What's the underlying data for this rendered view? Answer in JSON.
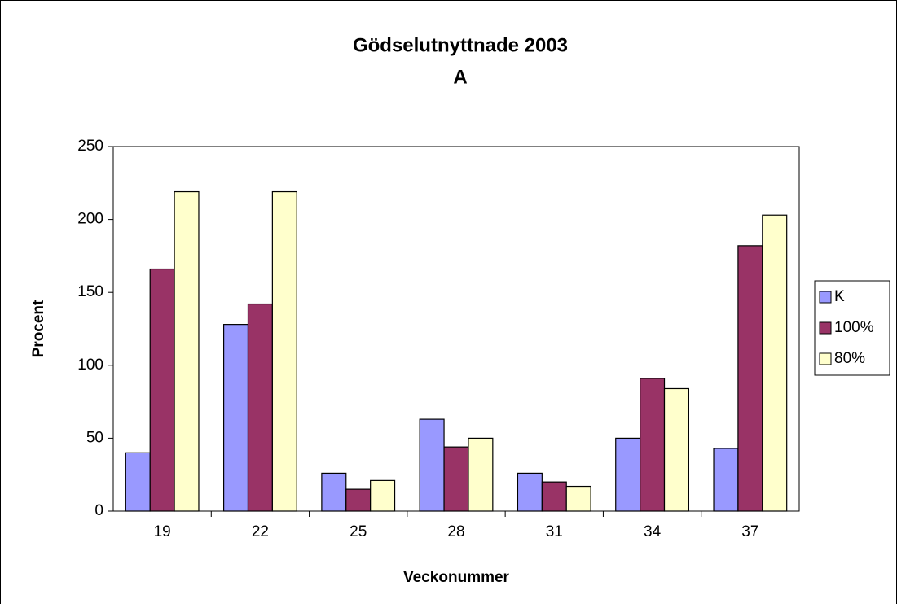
{
  "chart_data": {
    "type": "bar",
    "title": "Gödselutnyttnade 2003",
    "subtitle": "A",
    "x_label": "Veckonummer",
    "y_label": "Procent",
    "categories": [
      "19",
      "22",
      "25",
      "28",
      "31",
      "34",
      "37"
    ],
    "series": [
      {
        "name": "K",
        "color": "#9999ff",
        "values": [
          40,
          128,
          26,
          63,
          26,
          50,
          43
        ]
      },
      {
        "name": "100%",
        "color": "#993366",
        "values": [
          166,
          142,
          15,
          44,
          20,
          91,
          182
        ]
      },
      {
        "name": "80%",
        "color": "#ffffcc",
        "values": [
          219,
          219,
          21,
          50,
          17,
          84,
          203
        ]
      }
    ],
    "ylim": [
      0,
      250
    ],
    "yticks": [
      0,
      50,
      100,
      150,
      200,
      250
    ],
    "grid": false,
    "legend": "right"
  }
}
